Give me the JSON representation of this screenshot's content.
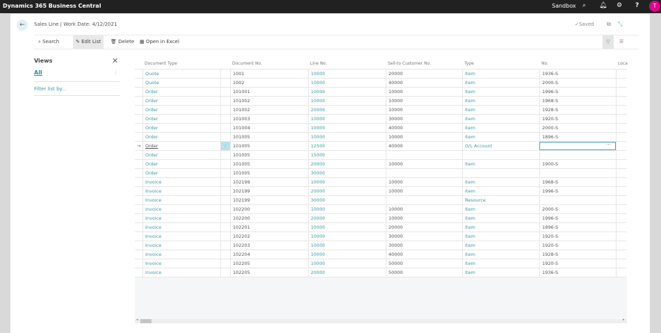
{
  "app": {
    "title": "Dynamics 365 Business Central",
    "environment": "Sandbox",
    "user_initial": "T"
  },
  "page": {
    "title": "Sales Line | Work Date: 4/12/2021",
    "status": "Saved"
  },
  "actions": {
    "search": "Search",
    "edit_list": "Edit List",
    "delete": "Delete",
    "open_excel": "Open in Excel"
  },
  "views": {
    "title": "Views",
    "selected": "All",
    "filter_link": "Filter list by..."
  },
  "columns": [
    "Document Type",
    "Document No.",
    "Line No.",
    "Sell-to Customer No.",
    "Type",
    "No.",
    "Loca"
  ],
  "rows": [
    [
      "Quote",
      "1001",
      "10000",
      "20000",
      "Item",
      "1936-S"
    ],
    [
      "Quote",
      "1002",
      "10000",
      "40000",
      "Item",
      "2000-S"
    ],
    [
      "Order",
      "101001",
      "10000",
      "10000",
      "Item",
      "1996-S"
    ],
    [
      "Order",
      "101002",
      "10000",
      "10000",
      "Item",
      "1968-S"
    ],
    [
      "Order",
      "101002",
      "20000",
      "10000",
      "Item",
      "1928-S"
    ],
    [
      "Order",
      "101003",
      "10000",
      "30000",
      "Item",
      "1920-S"
    ],
    [
      "Order",
      "101004",
      "10000",
      "40000",
      "Item",
      "2000-S"
    ],
    [
      "Order",
      "101005",
      "10000",
      "10000",
      "Item",
      "1896-S"
    ],
    [
      "Order",
      "101005",
      "12500",
      "40000",
      "G/L Account",
      ""
    ],
    [
      "Order",
      "101005",
      "15000",
      "",
      "",
      ""
    ],
    [
      "Order",
      "101005",
      "20000",
      "10000",
      "Item",
      "1900-S"
    ],
    [
      "Order",
      "101005",
      "30000",
      "",
      "",
      ""
    ],
    [
      "Invoice",
      "102199",
      "10000",
      "10000",
      "Item",
      "1968-S"
    ],
    [
      "Invoice",
      "102199",
      "20000",
      "10000",
      "Item",
      "1996-S"
    ],
    [
      "Invoice",
      "102199",
      "30000",
      "",
      "Resource",
      ""
    ],
    [
      "Invoice",
      "102200",
      "10000",
      "10000",
      "Item",
      "2000-S"
    ],
    [
      "Invoice",
      "102200",
      "20000",
      "10000",
      "Item",
      "1996-S"
    ],
    [
      "Invoice",
      "102201",
      "10000",
      "20000",
      "Item",
      "1896-S"
    ],
    [
      "Invoice",
      "102202",
      "10000",
      "30000",
      "Item",
      "1920-S"
    ],
    [
      "Invoice",
      "102203",
      "10000",
      "30000",
      "Item",
      "1920-S"
    ],
    [
      "Invoice",
      "102204",
      "10000",
      "40000",
      "Item",
      "1928-S"
    ],
    [
      "Invoice",
      "102205",
      "10000",
      "50000",
      "Item",
      "1920-S"
    ],
    [
      "Invoice",
      "102205",
      "20000",
      "50000",
      "Item",
      "1936-S"
    ]
  ],
  "selected_row": 8,
  "colors": {
    "accent": "#3a9aa6",
    "topbar": "#212121",
    "avatar": "#e3008c"
  }
}
